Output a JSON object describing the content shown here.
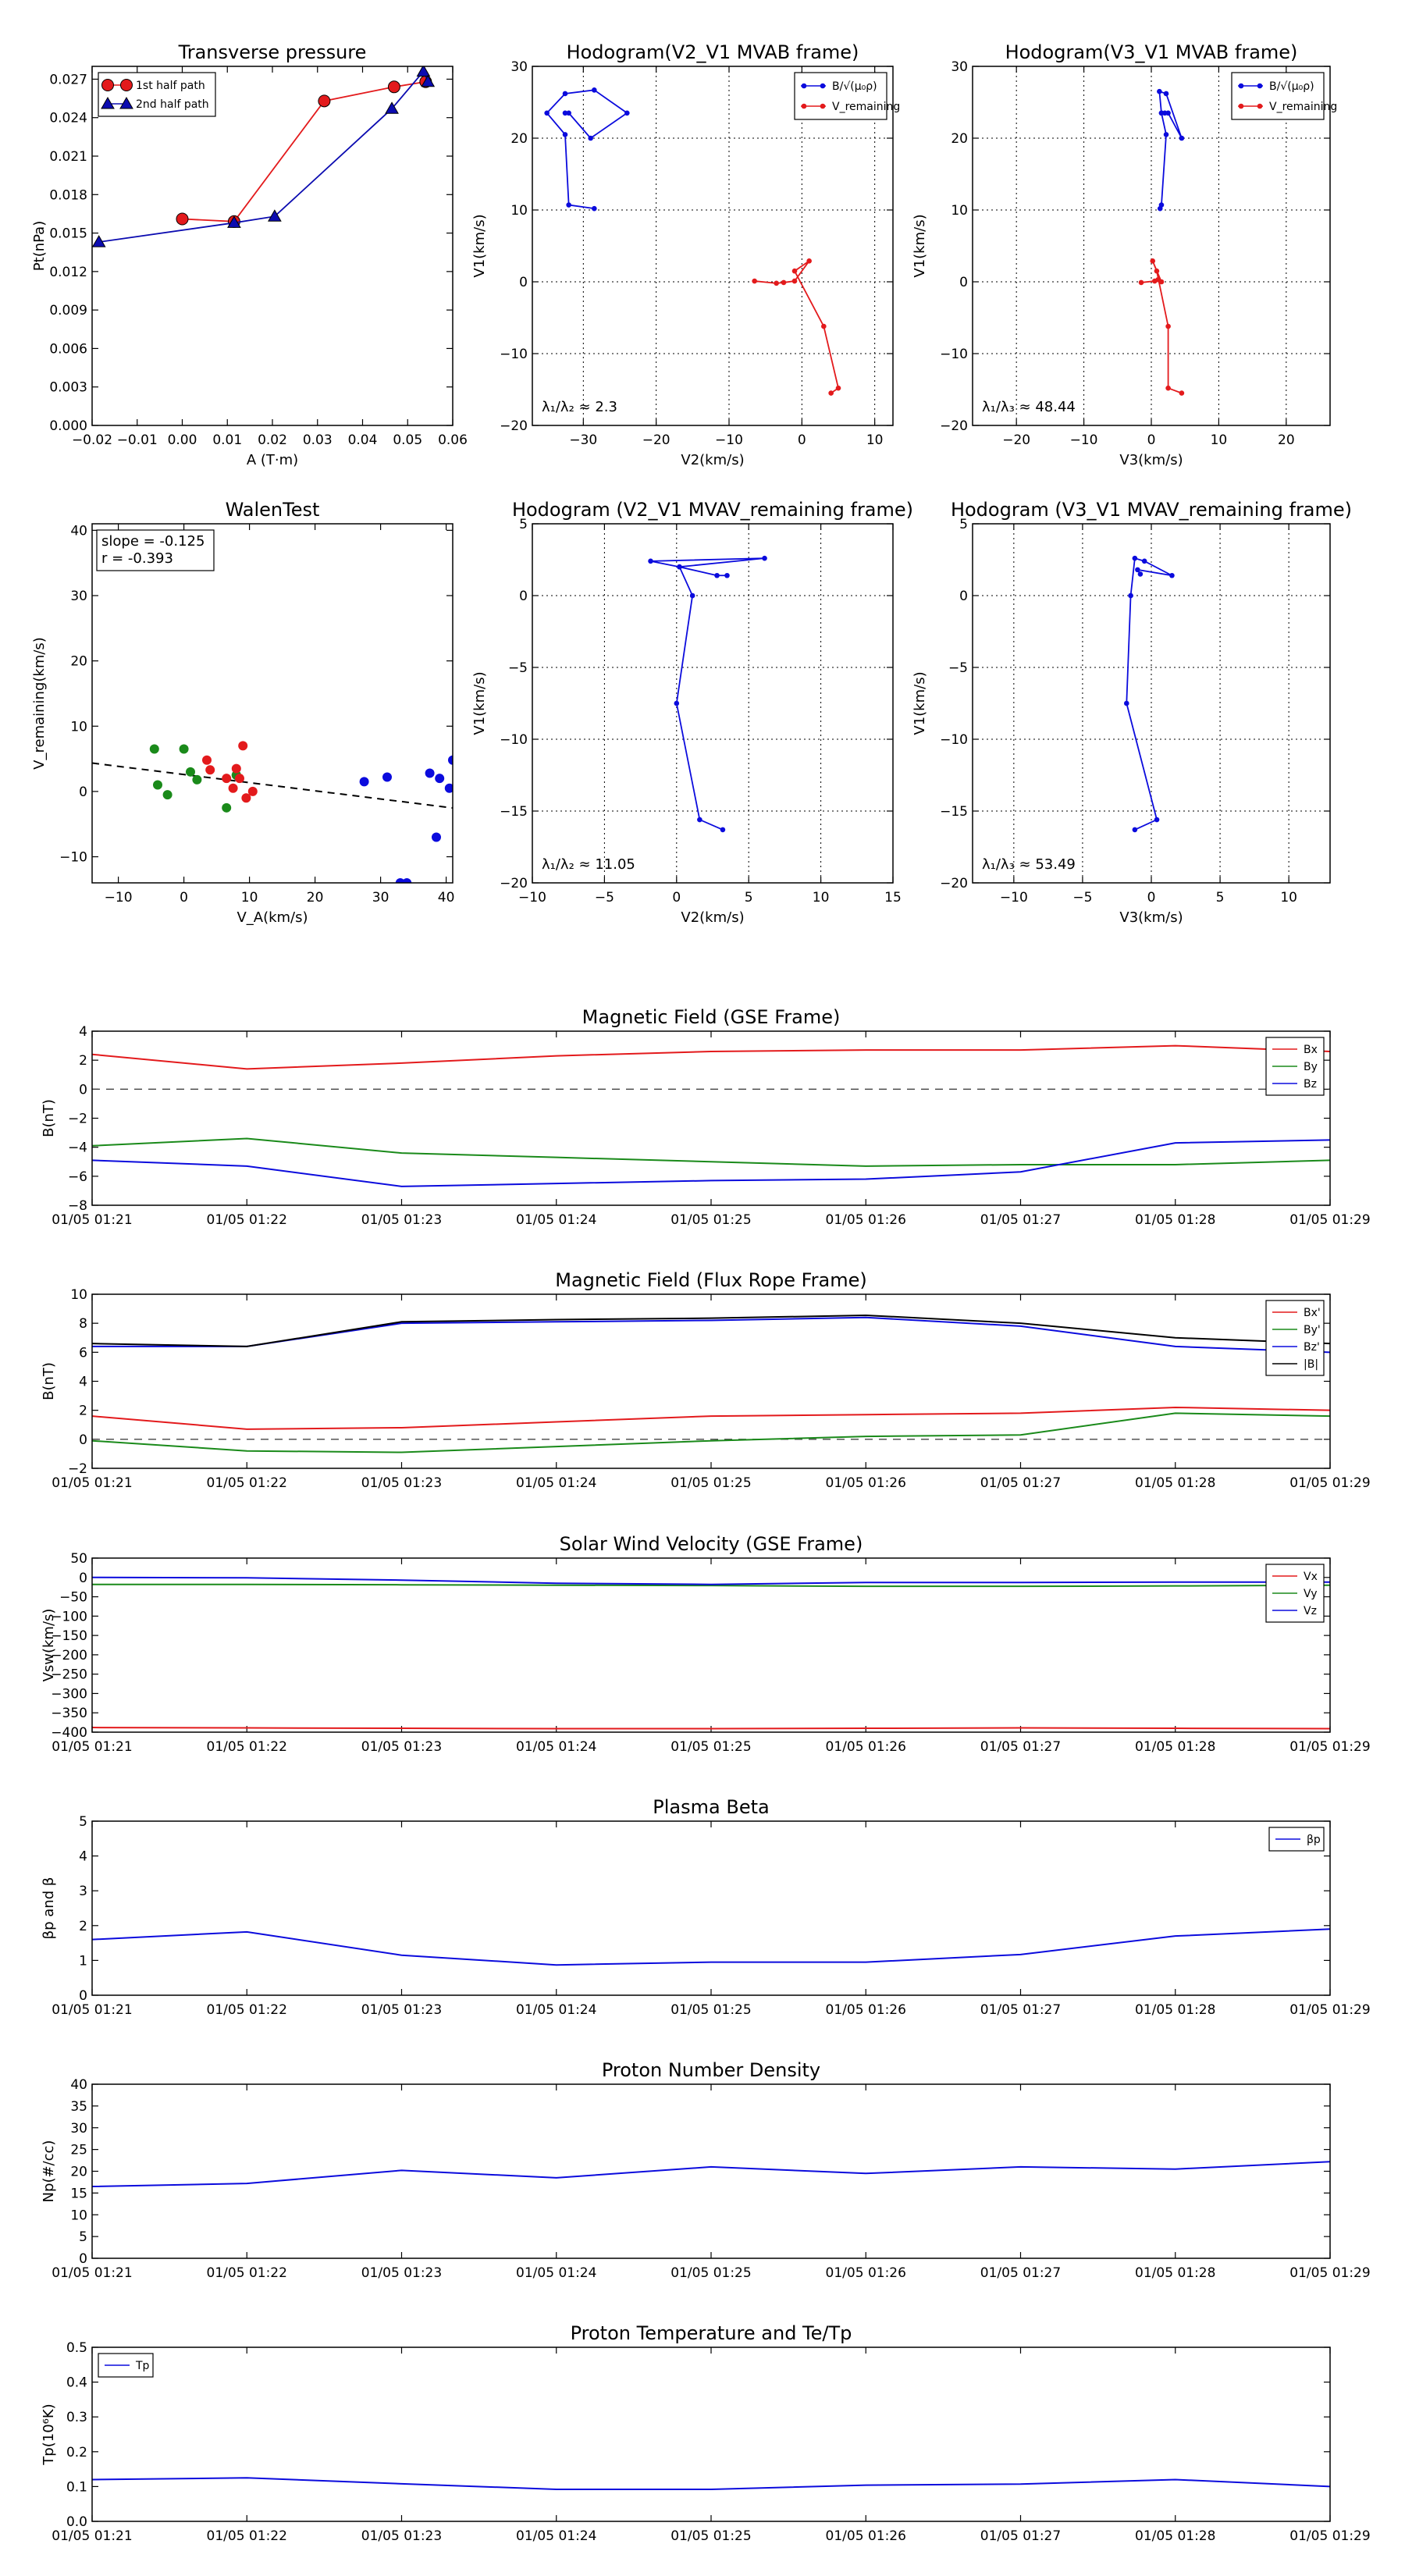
{
  "time_ticks": [
    "01/05 01:21",
    "01/05 01:22",
    "01/05 01:23",
    "01/05 01:24",
    "01/05 01:25",
    "01/05 01:26",
    "01/05 01:27",
    "01/05 01:28",
    "01/05 01:29"
  ],
  "chart_data": [
    {
      "id": "pt",
      "type": "line",
      "title": "Transverse pressure",
      "xlabel": "A (T·m)",
      "ylabel": "Pt(nPa)",
      "xlim": [
        -0.02,
        0.06
      ],
      "ylim": [
        0.0,
        0.028
      ],
      "xticks": [
        -0.02,
        -0.01,
        0.0,
        0.01,
        0.02,
        0.03,
        0.04,
        0.05,
        0.06
      ],
      "xticklabels": [
        "−0.02",
        "−0.01",
        "0.00",
        "0.01",
        "0.02",
        "0.03",
        "0.04",
        "0.05",
        "0.06"
      ],
      "yticks": [
        0.0,
        0.003,
        0.006,
        0.009,
        0.012,
        0.015,
        0.018,
        0.021,
        0.024,
        0.027
      ],
      "yticklabels": [
        "0.000",
        "0.003",
        "0.006",
        "0.009",
        "0.012",
        "0.015",
        "0.018",
        "0.021",
        "0.024",
        "0.027"
      ],
      "grid": false,
      "legend": "top-left",
      "series": [
        {
          "name": "1st half path",
          "color": "#e31a1c",
          "marker": "circle",
          "x": [
            0.0,
            0.0115,
            0.0315,
            0.047,
            0.054
          ],
          "y": [
            0.0161,
            0.0159,
            0.0253,
            0.0264,
            0.0268
          ]
        },
        {
          "name": "2nd half path",
          "color": "#0b0bb0",
          "marker": "triangle",
          "x": [
            -0.0185,
            0.0115,
            0.0205,
            0.0465,
            0.0535,
            0.0545
          ],
          "y": [
            0.0143,
            0.0158,
            0.0163,
            0.0247,
            0.0276,
            0.0268
          ]
        }
      ]
    },
    {
      "id": "h1",
      "type": "line",
      "title": "Hodogram(V2_V1 MVAB frame)",
      "xlabel": "V2(km/s)",
      "ylabel": "V1(km/s)",
      "xlim": [
        -37,
        12.5
      ],
      "ylim": [
        -20,
        30
      ],
      "xticks": [
        -30,
        -20,
        -10,
        0,
        10
      ],
      "xticklabels": [
        "−30",
        "−20",
        "−10",
        "0",
        "10"
      ],
      "yticks": [
        -20,
        -10,
        0,
        10,
        20,
        30
      ],
      "yticklabels": [
        "−20",
        "−10",
        "0",
        "10",
        "20",
        "30"
      ],
      "grid": true,
      "legend": "top-right",
      "annotation": "λ₁/λ₂ ≈ 2.3",
      "series": [
        {
          "name": "B/√(μ₀ρ)",
          "color": "#0b0bdd",
          "marker": "dot",
          "x": [
            -28.5,
            -32,
            -32.5,
            -35,
            -32.5,
            -28.5,
            -24,
            -29,
            -32,
            -32.5
          ],
          "y": [
            10.2,
            10.7,
            20.5,
            23.5,
            26.2,
            26.7,
            23.5,
            20,
            23.5,
            23.5
          ]
        },
        {
          "name": "V_remaining",
          "color": "#e31a1c",
          "marker": "dot",
          "x": [
            -6.5,
            -3.5,
            -2.5,
            -1,
            1,
            -1,
            3,
            5,
            4
          ],
          "y": [
            0.1,
            -0.2,
            -0.1,
            0.1,
            2.9,
            1.5,
            -6.2,
            -14.8,
            -15.5
          ]
        }
      ]
    },
    {
      "id": "h2",
      "type": "line",
      "title": "Hodogram(V3_V1 MVAB frame)",
      "xlabel": "V3(km/s)",
      "ylabel": "V1(km/s)",
      "xlim": [
        -26.5,
        26.5
      ],
      "ylim": [
        -20,
        30
      ],
      "xticks": [
        -20,
        -10,
        0,
        10,
        20
      ],
      "xticklabels": [
        "−20",
        "−10",
        "0",
        "10",
        "20"
      ],
      "yticks": [
        -20,
        -10,
        0,
        10,
        20,
        30
      ],
      "yticklabels": [
        "−20",
        "−10",
        "0",
        "10",
        "20",
        "30"
      ],
      "grid": true,
      "legend": "top-right",
      "annotation": "λ₁/λ₃ ≈ 48.44",
      "series": [
        {
          "name": "B/√(μ₀ρ)",
          "color": "#0b0bdd",
          "marker": "dot",
          "x": [
            1.3,
            1.5,
            2.2,
            1.5,
            1.2,
            2.2,
            4.5,
            2.5,
            2.0,
            1.5
          ],
          "y": [
            10.2,
            10.7,
            20.5,
            23.5,
            26.5,
            26.2,
            20,
            23.5,
            23.5,
            23.5
          ]
        },
        {
          "name": "V_remaining",
          "color": "#e31a1c",
          "marker": "dot",
          "x": [
            -1.5,
            0.5,
            1,
            1.5,
            0.2,
            0.8,
            2.5,
            2.5,
            4.5
          ],
          "y": [
            -0.1,
            0.1,
            0.3,
            0,
            2.9,
            1.5,
            -6.2,
            -14.8,
            -15.5
          ]
        }
      ]
    },
    {
      "id": "walen",
      "type": "scatter",
      "title": "WalenTest",
      "xlabel": "V_A(km/s)",
      "ylabel": "V_remaining(km/s)",
      "xlim": [
        -14,
        41
      ],
      "ylim": [
        -14,
        41
      ],
      "xticks": [
        -10,
        0,
        10,
        20,
        30,
        40
      ],
      "xticklabels": [
        "−10",
        "0",
        "10",
        "20",
        "30",
        "40"
      ],
      "yticks": [
        -10,
        0,
        10,
        20,
        30,
        40
      ],
      "yticklabels": [
        "−10",
        "0",
        "10",
        "20",
        "30",
        "40"
      ],
      "grid": false,
      "annotation": [
        "slope = -0.125",
        "r = -0.393"
      ],
      "fit_line": {
        "slope": -0.125,
        "intercept": 2.6,
        "color": "#000000",
        "style": "dashed"
      },
      "series": [
        {
          "name": "",
          "color": "#1a8a1a",
          "x": [
            -4.5,
            -4,
            -2.5,
            0,
            1,
            2,
            6.5,
            8,
            8
          ],
          "y": [
            6.5,
            1,
            -0.5,
            6.5,
            3,
            1.8,
            -2.5,
            2.5,
            2.5
          ]
        },
        {
          "name": "",
          "color": "#e31a1c",
          "x": [
            3.5,
            4,
            6.5,
            7.5,
            8,
            8.5,
            9,
            9.5,
            10.5
          ],
          "y": [
            4.8,
            3.3,
            2,
            0.5,
            3.5,
            2,
            7,
            -1,
            0
          ]
        },
        {
          "name": "",
          "color": "#0b0bdd",
          "x": [
            27.5,
            31,
            33,
            34,
            37.5,
            38.5,
            39,
            40.5,
            41
          ],
          "y": [
            1.5,
            2.2,
            -14,
            -14,
            2.8,
            -7,
            2,
            0.5,
            4.8
          ]
        }
      ]
    },
    {
      "id": "h3",
      "type": "line",
      "title": "Hodogram (V2_V1 MVAV_remaining frame)",
      "xlabel": "V2(km/s)",
      "ylabel": "V1(km/s)",
      "xlim": [
        -10,
        15
      ],
      "ylim": [
        -20,
        5
      ],
      "xticks": [
        -10,
        -5,
        0,
        5,
        10,
        15
      ],
      "xticklabels": [
        "−10",
        "−5",
        "0",
        "5",
        "10",
        "15"
      ],
      "yticks": [
        -20,
        -15,
        -10,
        -5,
        0,
        5
      ],
      "yticklabels": [
        "−20",
        "−15",
        "−10",
        "−5",
        "0",
        "5"
      ],
      "grid": true,
      "annotation": "λ₁/λ₂ ≈ 11.05",
      "series": [
        {
          "name": "",
          "color": "#0b0bdd",
          "marker": "dot",
          "x": [
            3.2,
            1.6,
            0,
            1.1,
            0.2,
            6.1,
            -1.8,
            0.2,
            2.8,
            3.5
          ],
          "y": [
            -16.3,
            -15.6,
            -7.5,
            0,
            2,
            2.6,
            2.4,
            2,
            1.4,
            1.4
          ]
        }
      ]
    },
    {
      "id": "h4",
      "type": "line",
      "title": "Hodogram (V3_V1 MVAV_remaining frame)",
      "xlabel": "V3(km/s)",
      "ylabel": "V1(km/s)",
      "xlim": [
        -13,
        13
      ],
      "ylim": [
        -20,
        5
      ],
      "xticks": [
        -10,
        -5,
        0,
        5,
        10
      ],
      "xticklabels": [
        "−10",
        "−5",
        "0",
        "5",
        "10"
      ],
      "yticks": [
        -20,
        -15,
        -10,
        -5,
        0,
        5
      ],
      "yticklabels": [
        "−20",
        "−15",
        "−10",
        "−5",
        "0",
        "5"
      ],
      "grid": true,
      "annotation": "λ₁/λ₃ ≈ 53.49",
      "series": [
        {
          "name": "",
          "color": "#0b0bdd",
          "marker": "dot",
          "x": [
            -1.2,
            0.4,
            -1.8,
            -1.5,
            -1.2,
            -0.5,
            1.5,
            -1,
            -0.8
          ],
          "y": [
            -16.3,
            -15.6,
            -7.5,
            0,
            2.6,
            2.4,
            1.4,
            1.8,
            1.5
          ]
        }
      ]
    },
    {
      "id": "bgse",
      "type": "line",
      "title": "Magnetic Field (GSE Frame)",
      "xlabel": "",
      "ylabel": "B(nT)",
      "ylim": [
        -8,
        4
      ],
      "yticks": [
        -8,
        -6,
        -4,
        -2,
        0,
        2,
        4
      ],
      "yticklabels": [
        "−8",
        "−6",
        "−4",
        "−2",
        "0",
        "2",
        "4"
      ],
      "zero_line": true,
      "legend": "top-right",
      "series": [
        {
          "name": "Bx",
          "color": "#e31a1c",
          "values": [
            2.4,
            1.4,
            1.8,
            2.3,
            2.6,
            2.7,
            2.7,
            3.0,
            2.6
          ]
        },
        {
          "name": "By",
          "color": "#1a8a1a",
          "values": [
            -3.9,
            -3.4,
            -4.4,
            -4.7,
            -5.0,
            -5.3,
            -5.2,
            -5.2,
            -4.9
          ]
        },
        {
          "name": "Bz",
          "color": "#0b0bdd",
          "values": [
            -4.9,
            -5.3,
            -6.7,
            -6.5,
            -6.3,
            -6.2,
            -5.7,
            -3.7,
            -3.5
          ]
        }
      ]
    },
    {
      "id": "bfr",
      "type": "line",
      "title": "Magnetic Field (Flux Rope Frame)",
      "xlabel": "",
      "ylabel": "B(nT)",
      "ylim": [
        -2,
        10
      ],
      "yticks": [
        -2,
        0,
        2,
        4,
        6,
        8,
        10
      ],
      "yticklabels": [
        "−2",
        "0",
        "2",
        "4",
        "6",
        "8",
        "10"
      ],
      "zero_line": true,
      "legend": "top-right",
      "series": [
        {
          "name": "Bx'",
          "color": "#e31a1c",
          "values": [
            1.6,
            0.7,
            0.8,
            1.2,
            1.6,
            1.7,
            1.8,
            2.2,
            2.0
          ]
        },
        {
          "name": "By'",
          "color": "#1a8a1a",
          "values": [
            -0.1,
            -0.8,
            -0.9,
            -0.5,
            -0.1,
            0.2,
            0.3,
            1.8,
            1.6
          ]
        },
        {
          "name": "Bz'",
          "color": "#0b0bdd",
          "values": [
            6.4,
            6.4,
            8.0,
            8.1,
            8.2,
            8.4,
            7.8,
            6.4,
            6.0
          ]
        },
        {
          "name": "|B|",
          "color": "#000000",
          "values": [
            6.6,
            6.4,
            8.1,
            8.25,
            8.35,
            8.55,
            8.0,
            7.0,
            6.6
          ]
        }
      ]
    },
    {
      "id": "vsw",
      "type": "line",
      "title": "Solar Wind Velocity (GSE Frame)",
      "xlabel": "",
      "ylabel": "Vsw(km/s)",
      "ylim": [
        -400,
        50
      ],
      "yticks": [
        -400,
        -350,
        -300,
        -250,
        -200,
        -150,
        -100,
        -50,
        0,
        50
      ],
      "yticklabels": [
        "−400",
        "−350",
        "−300",
        "−250",
        "−200",
        "−150",
        "−100",
        "−50",
        "0",
        "50"
      ],
      "legend": "top-right",
      "series": [
        {
          "name": "Vx",
          "color": "#e31a1c",
          "values": [
            -388,
            -389,
            -390,
            -391,
            -391,
            -390,
            -389,
            -390,
            -391
          ]
        },
        {
          "name": "Vy",
          "color": "#1a8a1a",
          "values": [
            -18,
            -18,
            -19,
            -20,
            -21,
            -23,
            -23,
            -22,
            -20
          ]
        },
        {
          "name": "Vz",
          "color": "#0b0bdd",
          "values": [
            0,
            -1,
            -7,
            -15,
            -18,
            -13,
            -13,
            -12,
            -12
          ]
        }
      ]
    },
    {
      "id": "beta",
      "type": "line",
      "title": "Plasma Beta",
      "xlabel": "",
      "ylabel": "βp and β",
      "ylim": [
        0,
        5
      ],
      "yticks": [
        0,
        1,
        2,
        3,
        4,
        5
      ],
      "yticklabels": [
        "0",
        "1",
        "2",
        "3",
        "4",
        "5"
      ],
      "legend": "top-right",
      "series": [
        {
          "name": "βp",
          "color": "#0b0bdd",
          "values": [
            1.6,
            1.82,
            1.15,
            0.87,
            0.95,
            0.95,
            1.17,
            1.7,
            1.9
          ]
        }
      ]
    },
    {
      "id": "np",
      "type": "line",
      "title": "Proton Number Density",
      "xlabel": "",
      "ylabel": "Np(#/cc)",
      "ylim": [
        0,
        40
      ],
      "yticks": [
        0,
        5,
        10,
        15,
        20,
        25,
        30,
        35,
        40
      ],
      "yticklabels": [
        "0",
        "5",
        "10",
        "15",
        "20",
        "25",
        "30",
        "35",
        "40"
      ],
      "series": [
        {
          "name": "",
          "color": "#0b0bdd",
          "values": [
            16.5,
            17.2,
            20.2,
            18.5,
            21,
            19.5,
            21,
            20.5,
            22.2
          ]
        }
      ]
    },
    {
      "id": "tp",
      "type": "line",
      "title": "Proton Temperature and Te/Tp",
      "xlabel": "",
      "ylabel": "Tp(10⁶K)",
      "ylim": [
        0,
        0.5
      ],
      "yticks": [
        0,
        0.1,
        0.2,
        0.3,
        0.4,
        0.5
      ],
      "yticklabels": [
        "0.0",
        "0.1",
        "0.2",
        "0.3",
        "0.4",
        "0.5"
      ],
      "legend": "top-left",
      "series": [
        {
          "name": "Tp",
          "color": "#0b0bdd",
          "values": [
            0.12,
            0.125,
            0.108,
            0.092,
            0.092,
            0.104,
            0.107,
            0.12,
            0.1
          ]
        }
      ]
    }
  ]
}
